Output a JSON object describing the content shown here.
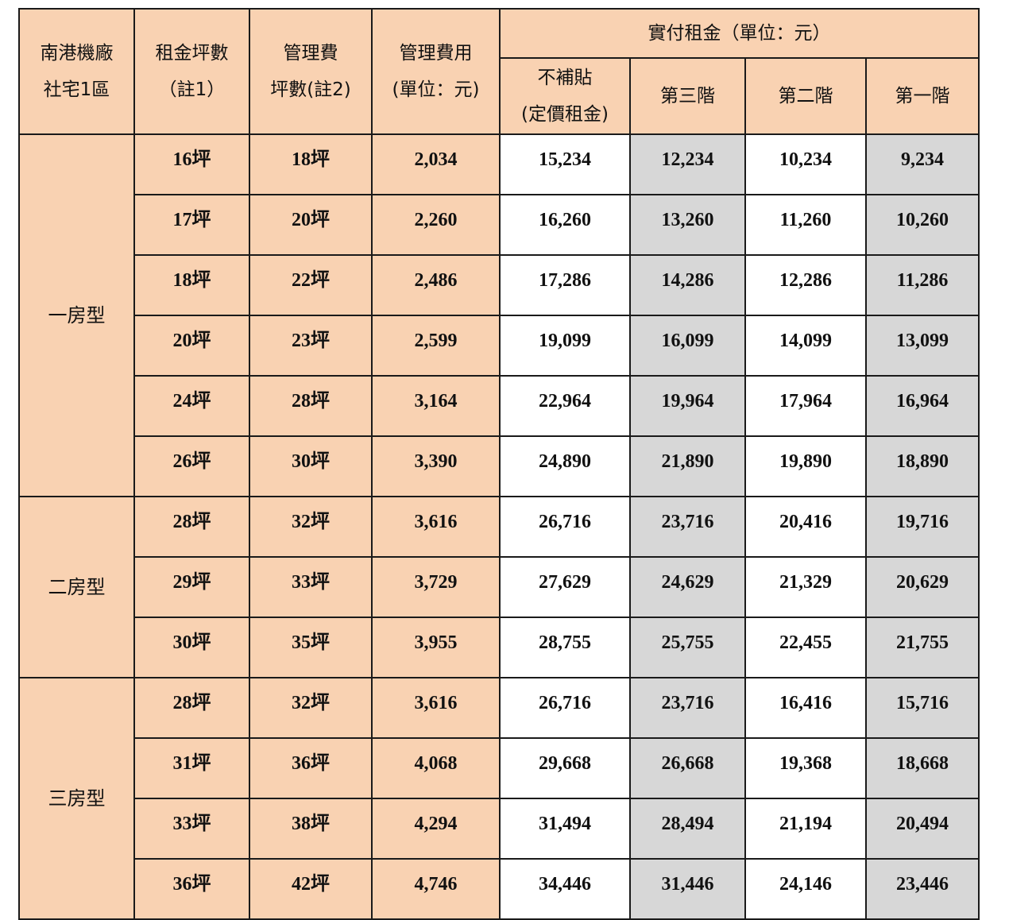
{
  "table": {
    "headers": {
      "col1": [
        "南港機廠",
        "社宅1區"
      ],
      "col2": [
        "租金坪數",
        "（註1）"
      ],
      "col3": [
        "管理費",
        "坪數(註2)"
      ],
      "col4": [
        "管理費用",
        "(單位：元)"
      ],
      "group": "實付租金（單位：元）",
      "sub1": [
        "不補貼",
        "(定價租金)"
      ],
      "sub2": "第三階",
      "sub3": "第二階",
      "sub4": "第一階"
    },
    "groups": [
      {
        "type": "一房型",
        "rows": [
          {
            "rent_area": "16坪",
            "mgmt_area": "18坪",
            "mgmt_fee": "2,034",
            "unsubsidized": "15,234",
            "tier3": "12,234",
            "tier2": "10,234",
            "tier1": "9,234"
          },
          {
            "rent_area": "17坪",
            "mgmt_area": "20坪",
            "mgmt_fee": "2,260",
            "unsubsidized": "16,260",
            "tier3": "13,260",
            "tier2": "11,260",
            "tier1": "10,260"
          },
          {
            "rent_area": "18坪",
            "mgmt_area": "22坪",
            "mgmt_fee": "2,486",
            "unsubsidized": "17,286",
            "tier3": "14,286",
            "tier2": "12,286",
            "tier1": "11,286"
          },
          {
            "rent_area": "20坪",
            "mgmt_area": "23坪",
            "mgmt_fee": "2,599",
            "unsubsidized": "19,099",
            "tier3": "16,099",
            "tier2": "14,099",
            "tier1": "13,099"
          },
          {
            "rent_area": "24坪",
            "mgmt_area": "28坪",
            "mgmt_fee": "3,164",
            "unsubsidized": "22,964",
            "tier3": "19,964",
            "tier2": "17,964",
            "tier1": "16,964"
          },
          {
            "rent_area": "26坪",
            "mgmt_area": "30坪",
            "mgmt_fee": "3,390",
            "unsubsidized": "24,890",
            "tier3": "21,890",
            "tier2": "19,890",
            "tier1": "18,890"
          }
        ]
      },
      {
        "type": "二房型",
        "rows": [
          {
            "rent_area": "28坪",
            "mgmt_area": "32坪",
            "mgmt_fee": "3,616",
            "unsubsidized": "26,716",
            "tier3": "23,716",
            "tier2": "20,416",
            "tier1": "19,716"
          },
          {
            "rent_area": "29坪",
            "mgmt_area": "33坪",
            "mgmt_fee": "3,729",
            "unsubsidized": "27,629",
            "tier3": "24,629",
            "tier2": "21,329",
            "tier1": "20,629"
          },
          {
            "rent_area": "30坪",
            "mgmt_area": "35坪",
            "mgmt_fee": "3,955",
            "unsubsidized": "28,755",
            "tier3": "25,755",
            "tier2": "22,455",
            "tier1": "21,755"
          }
        ]
      },
      {
        "type": "三房型",
        "rows": [
          {
            "rent_area": "28坪",
            "mgmt_area": "32坪",
            "mgmt_fee": "3,616",
            "unsubsidized": "26,716",
            "tier3": "23,716",
            "tier2": "16,416",
            "tier1": "15,716"
          },
          {
            "rent_area": "31坪",
            "mgmt_area": "36坪",
            "mgmt_fee": "4,068",
            "unsubsidized": "29,668",
            "tier3": "26,668",
            "tier2": "19,368",
            "tier1": "18,668"
          },
          {
            "rent_area": "33坪",
            "mgmt_area": "38坪",
            "mgmt_fee": "4,294",
            "unsubsidized": "31,494",
            "tier3": "28,494",
            "tier2": "21,194",
            "tier1": "20,494"
          },
          {
            "rent_area": "36坪",
            "mgmt_area": "42坪",
            "mgmt_fee": "4,746",
            "unsubsidized": "34,446",
            "tier3": "31,446",
            "tier2": "24,146",
            "tier1": "23,446"
          }
        ]
      }
    ]
  }
}
